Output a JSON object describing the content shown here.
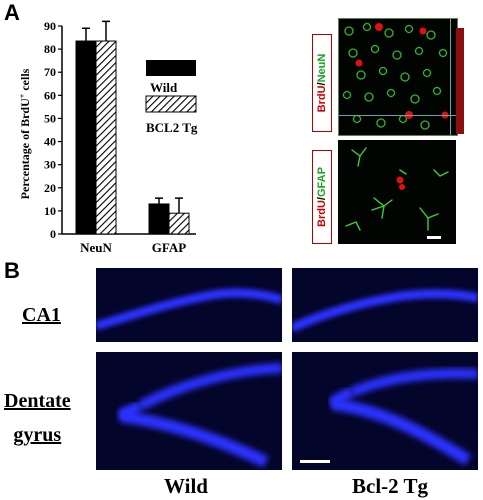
{
  "panels": {
    "a": "A",
    "b": "B"
  },
  "chart_data": {
    "type": "bar",
    "categories": [
      "NeuN",
      "GFAP"
    ],
    "series": [
      {
        "name": "Wild",
        "values": [
          83.5,
          13
        ],
        "errors": [
          5.5,
          2.5
        ],
        "fill": "#000000"
      },
      {
        "name": "BCL2 Tg",
        "values": [
          83.5,
          9
        ],
        "errors": [
          8.5,
          6.5
        ],
        "fill": "hatch"
      }
    ],
    "ylabel_prefix": "Percentage of BrdU",
    "ylabel_sup": "+",
    "ylabel_suffix": " cells",
    "ylim": [
      0,
      90
    ],
    "yticks": [
      "0",
      "10",
      "20",
      "30",
      "40",
      "50",
      "60",
      "70",
      "80",
      "90"
    ],
    "legend_position": "right"
  },
  "micrographs": {
    "neun": {
      "red": "BrdU",
      "sep": "/",
      "green": "NeuN"
    },
    "gfap": {
      "red": "BrdU",
      "sep": "/",
      "green": "GFAP"
    }
  },
  "panel_b": {
    "rows": [
      "CA1",
      "Dentate",
      "gyrus"
    ],
    "columns": [
      "Wild",
      "Bcl-2 Tg"
    ]
  },
  "colors": {
    "stain_blue": "#2b33ff",
    "background_dark": "#04052a"
  }
}
